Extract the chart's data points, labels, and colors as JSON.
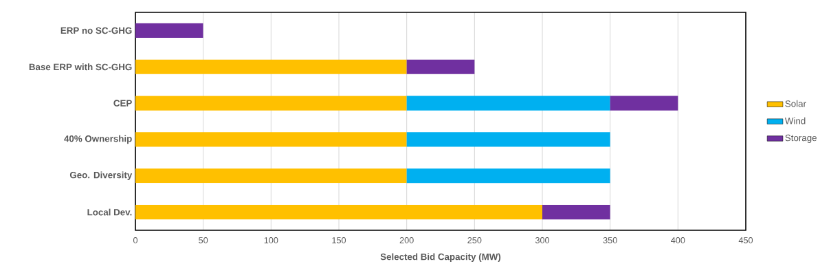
{
  "chart_data": {
    "type": "bar",
    "orientation": "horizontal",
    "stacked": true,
    "categories": [
      "ERP no SC-GHG",
      "Base ERP with SC-GHG",
      "CEP",
      "40% Ownership",
      "Geo. Diversity",
      "Local Dev."
    ],
    "series": [
      {
        "name": "Solar",
        "color": "#ffc000",
        "values": [
          null,
          200,
          200,
          200,
          200,
          300
        ]
      },
      {
        "name": "Wind",
        "color": "#00b0f0",
        "values": [
          null,
          null,
          150,
          150,
          150,
          null
        ]
      },
      {
        "name": "Storage",
        "color": "#7030a0",
        "values": [
          50,
          50,
          50,
          null,
          null,
          50
        ]
      }
    ],
    "xlabel": "Selected Bid Capacity (MW)",
    "xlim": [
      0,
      450
    ],
    "xticks": [
      0,
      50,
      100,
      150,
      200,
      250,
      300,
      350,
      400,
      450
    ],
    "grid": "x",
    "legend": "right"
  }
}
